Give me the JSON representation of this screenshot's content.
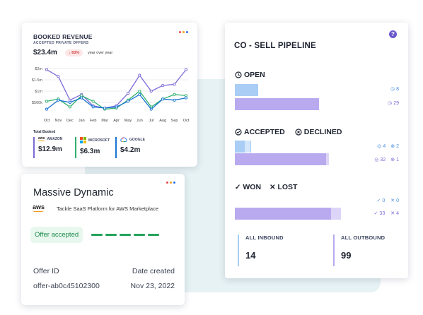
{
  "colors": {
    "purple": "#7b6ad8",
    "green": "#2fb06a",
    "blue": "#1673d4",
    "pipe_lavender": "#b9aaf0",
    "pipe_blue": "#a9cdf5",
    "accent_dots": [
      "#e5484d",
      "#f0a020",
      "#2f6fe0"
    ]
  },
  "revenue_card": {
    "title": "BOOKED REVENUE",
    "subtitle": "ACCEPTED PRIVATE OFFERS",
    "amount": "$23.4m",
    "change_badge": "↓ 83%",
    "change_caption": "year over year",
    "total_label": "Total Booked",
    "vendors": [
      {
        "name": "AMAZON",
        "value": "$12.9m",
        "icon": "aws-icon"
      },
      {
        "name": "MICROSOFT",
        "value": "$6.3m",
        "icon": "microsoft-icon"
      },
      {
        "name": "GOOGLE",
        "value": "$4.2m",
        "icon": "google-cloud-icon"
      }
    ]
  },
  "chart_data": {
    "type": "line",
    "categories": [
      "Oct",
      "Nov",
      "Dec",
      "Jan",
      "Feb",
      "Mar",
      "Apr",
      "May",
      "Jun",
      "Jul",
      "Aug",
      "Sep",
      "Oct"
    ],
    "y_ticks": [
      "$2m",
      "$1.5m",
      "$1m",
      "$500k"
    ],
    "ylim": [
      0,
      2000000
    ],
    "grid": true,
    "series": [
      {
        "color": "purple",
        "values": [
          1950000,
          1650000,
          600000,
          850000,
          350000,
          250000,
          350000,
          900000,
          1700000,
          1000000,
          1250000,
          1300000,
          1950000
        ]
      },
      {
        "color": "green",
        "values": [
          550000,
          650000,
          300000,
          800000,
          550000,
          200000,
          250000,
          600000,
          1000000,
          300000,
          650000,
          850000,
          800000
        ]
      },
      {
        "color": "blue",
        "values": [
          200000,
          600000,
          500000,
          700000,
          300000,
          250000,
          300000,
          550000,
          850000,
          200000,
          650000,
          600000,
          700000
        ]
      }
    ]
  },
  "company_card": {
    "name": "Massive Dynamic",
    "logo_text": "aws",
    "subtitle": "Tackle SaaS Platform for AWS Marketplace",
    "status": "Offer accepted",
    "progress_segments_complete": 5,
    "offer_id_label": "Offer ID",
    "offer_id": "offer-ab0c45102300",
    "date_label": "Date created",
    "date": "Nov 23, 2022"
  },
  "pipeline": {
    "title": "CO - SELL PIPELINE",
    "help": "?",
    "open": {
      "label": "OPEN",
      "bars": [
        {
          "value": 8,
          "color": "pipe_blue"
        },
        {
          "value": 29,
          "color": "pipe_lavender"
        }
      ],
      "counts": [
        "8",
        "29"
      ]
    },
    "accepted_declined": {
      "accepted_label": "ACCEPTED",
      "declined_label": "DECLINED",
      "rows": [
        {
          "accepted": "4",
          "declined": "2",
          "accepted_value": 4,
          "declined_value": 2,
          "color": "pipe_blue"
        },
        {
          "accepted": "32",
          "declined": "1",
          "accepted_value": 32,
          "declined_value": 1,
          "color": "pipe_lavender"
        }
      ]
    },
    "won_lost": {
      "won_label": "WON",
      "lost_label": "LOST",
      "rows": [
        {
          "won": "0",
          "lost": "0",
          "won_value": 0,
          "lost_value": 0
        },
        {
          "won": "33",
          "lost": "4",
          "won_value": 33,
          "lost_value": 4
        }
      ]
    },
    "inbound_label": "ALL INBOUND",
    "inbound_value": "14",
    "outbound_label": "ALL OUTBOUND",
    "outbound_value": "99"
  }
}
